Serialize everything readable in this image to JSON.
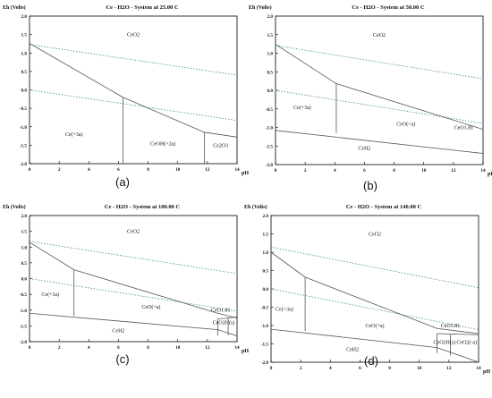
{
  "colors": {
    "boundary": "#555555",
    "water_line": "#3a8f86",
    "text": "#111111"
  },
  "panels": [
    {
      "id": "a",
      "title": "Ce - H2O - System at 25.00 C",
      "caption": "(a)",
      "y_axis_label": "Eh (Volts)",
      "x_axis_label": "pH",
      "x_ticks": [
        "0",
        "2",
        "4",
        "6",
        "8",
        "10",
        "12",
        "14"
      ],
      "y_ticks": [
        "2.0",
        "1.5",
        "1.0",
        "0.5",
        "0.0",
        "-0.5",
        "-1.0",
        "-1.5",
        "-2.0"
      ],
      "xlim": [
        0,
        14
      ],
      "ylim": [
        -2.0,
        2.0
      ],
      "water_lines": [
        [
          [
            0,
            1.23
          ],
          [
            14,
            0.4
          ]
        ],
        [
          [
            0,
            0.0
          ],
          [
            14,
            -0.83
          ]
        ]
      ],
      "boundaries": [
        [
          [
            0,
            1.26
          ],
          [
            6.3,
            -0.2
          ],
          [
            11.8,
            -1.15
          ],
          [
            14,
            -1.28
          ]
        ],
        [
          [
            6.3,
            -0.2
          ],
          [
            6.3,
            -2.0
          ]
        ],
        [
          [
            11.8,
            -1.15
          ],
          [
            11.8,
            -2.0
          ]
        ]
      ],
      "labels": [
        {
          "text": "CeO2",
          "pH": 7.0,
          "Eh": 1.45
        },
        {
          "text": "Ce(+3a)",
          "pH": 3.0,
          "Eh": -1.25
        },
        {
          "text": "CeOH(+2a)",
          "pH": 9.0,
          "Eh": -1.5
        },
        {
          "text": "Ce2O3",
          "pH": 12.9,
          "Eh": -1.55
        }
      ]
    },
    {
      "id": "b",
      "title": "Ce - H2O - System at 50.00 C",
      "caption": "(b)",
      "y_axis_label": "Eh (Volts)",
      "x_axis_label": "pH",
      "x_ticks": [
        "0",
        "2",
        "4",
        "6",
        "8",
        "10",
        "12",
        "14"
      ],
      "y_ticks": [
        "2.0",
        "1.5",
        "1.0",
        "0.5",
        "0.0",
        "-0.5",
        "-1.0",
        "-1.5",
        "-2.0"
      ],
      "xlim": [
        0,
        14
      ],
      "ylim": [
        -2.0,
        2.0
      ],
      "water_lines": [
        [
          [
            0,
            1.21
          ],
          [
            14,
            0.31
          ]
        ],
        [
          [
            0,
            0.0
          ],
          [
            14,
            -0.89
          ]
        ]
      ],
      "boundaries": [
        [
          [
            0,
            1.24
          ],
          [
            4.1,
            0.18
          ],
          [
            14,
            -1.05
          ]
        ],
        [
          [
            4.1,
            0.18
          ],
          [
            4.1,
            -1.15
          ]
        ],
        [
          [
            0,
            -1.08
          ],
          [
            14,
            -1.7
          ]
        ]
      ],
      "labels": [
        {
          "text": "CeO2",
          "pH": 7.0,
          "Eh": 1.45
        },
        {
          "text": "Ce(+3a)",
          "pH": 1.8,
          "Eh": -0.5
        },
        {
          "text": "CeO(+a)",
          "pH": 8.8,
          "Eh": -0.95
        },
        {
          "text": "CeO1.81",
          "pH": 12.7,
          "Eh": -1.05
        },
        {
          "text": "CeH2",
          "pH": 6.0,
          "Eh": -1.6
        }
      ]
    },
    {
      "id": "c",
      "title": "Ce - H2O - System at 100.00 C",
      "caption": "(c)",
      "y_axis_label": "Eh (Volts)",
      "x_axis_label": "pH",
      "x_ticks": [
        "0",
        "2",
        "4",
        "6",
        "8",
        "10",
        "12",
        "14"
      ],
      "y_ticks": [
        "2.0",
        "1.5",
        "1.0",
        "0.5",
        "0.0",
        "-0.5",
        "-1.0",
        "-1.5",
        "-2.0"
      ],
      "xlim": [
        0,
        14
      ],
      "ylim": [
        -2.0,
        2.0
      ],
      "water_lines": [
        [
          [
            0,
            1.18
          ],
          [
            14,
            0.16
          ]
        ],
        [
          [
            0,
            0.0
          ],
          [
            14,
            -1.03
          ]
        ]
      ],
      "boundaries": [
        [
          [
            0,
            1.15
          ],
          [
            3.0,
            0.28
          ],
          [
            12.7,
            -1.1
          ],
          [
            14,
            -1.25
          ]
        ],
        [
          [
            3.0,
            0.28
          ],
          [
            3.0,
            -1.18
          ]
        ],
        [
          [
            0,
            -1.1
          ],
          [
            12.7,
            -1.62
          ],
          [
            14,
            -1.82
          ]
        ],
        [
          [
            12.7,
            -1.28
          ],
          [
            14,
            -1.22
          ]
        ],
        [
          [
            12.7,
            -1.28
          ],
          [
            12.7,
            -1.8
          ]
        ],
        [
          [
            13.4,
            -1.25
          ],
          [
            13.4,
            -1.8
          ]
        ]
      ],
      "labels": [
        {
          "text": "CeO2",
          "pH": 7.0,
          "Eh": 1.45
        },
        {
          "text": "Ce(+3a)",
          "pH": 1.4,
          "Eh": -0.55
        },
        {
          "text": "CeO(+a)",
          "pH": 8.2,
          "Eh": -0.95
        },
        {
          "text": "CeO1.81",
          "pH": 12.9,
          "Eh": -1.05
        },
        {
          "text": "CeO2H(s)",
          "pH": 13.1,
          "Eh": -1.45
        },
        {
          "text": "CeH2",
          "pH": 6.0,
          "Eh": -1.7
        }
      ]
    },
    {
      "id": "d",
      "title": "Ce - H2O - System at 140.00 C",
      "caption": "(d)",
      "y_axis_label": "Eh (Volts)",
      "x_axis_label": "pH",
      "x_ticks": [
        "0",
        "2",
        "4",
        "6",
        "8",
        "10",
        "12",
        "14"
      ],
      "y_ticks": [
        "2.0",
        "1.5",
        "1.0",
        "0.5",
        "0.0",
        "-0.5",
        "-1.0",
        "-1.5",
        "-2.0"
      ],
      "xlim": [
        0,
        14
      ],
      "ylim": [
        -2.0,
        2.0
      ],
      "water_lines": [
        [
          [
            0,
            1.14
          ],
          [
            14,
            0.03
          ]
        ],
        [
          [
            0,
            0.0
          ],
          [
            14,
            -1.11
          ]
        ]
      ],
      "boundaries": [
        [
          [
            0,
            1.0
          ],
          [
            2.3,
            0.32
          ],
          [
            11.2,
            -1.08
          ],
          [
            14,
            -1.22
          ]
        ],
        [
          [
            2.3,
            0.32
          ],
          [
            2.3,
            -1.15
          ]
        ],
        [
          [
            0,
            -1.1
          ],
          [
            11.2,
            -1.6
          ],
          [
            14,
            -2.0
          ]
        ],
        [
          [
            11.2,
            -1.22
          ],
          [
            14,
            -1.25
          ]
        ],
        [
          [
            11.2,
            -1.22
          ],
          [
            11.2,
            -1.75
          ]
        ],
        [
          [
            12.1,
            -1.25
          ],
          [
            12.1,
            -1.82
          ]
        ]
      ],
      "labels": [
        {
          "text": "CeO2",
          "pH": 7.0,
          "Eh": 1.45
        },
        {
          "text": "Ce(+3a)",
          "pH": 0.9,
          "Eh": -0.6
        },
        {
          "text": "CeO(+a)",
          "pH": 7.0,
          "Eh": -1.05
        },
        {
          "text": "CeO1.81",
          "pH": 12.1,
          "Eh": -1.05
        },
        {
          "text": "CeO2H(s)",
          "pH": 11.7,
          "Eh": -1.5
        },
        {
          "text": "CeO2(-a)",
          "pH": 13.2,
          "Eh": -1.5
        },
        {
          "text": "CeH2",
          "pH": 5.5,
          "Eh": -1.7
        }
      ]
    }
  ]
}
